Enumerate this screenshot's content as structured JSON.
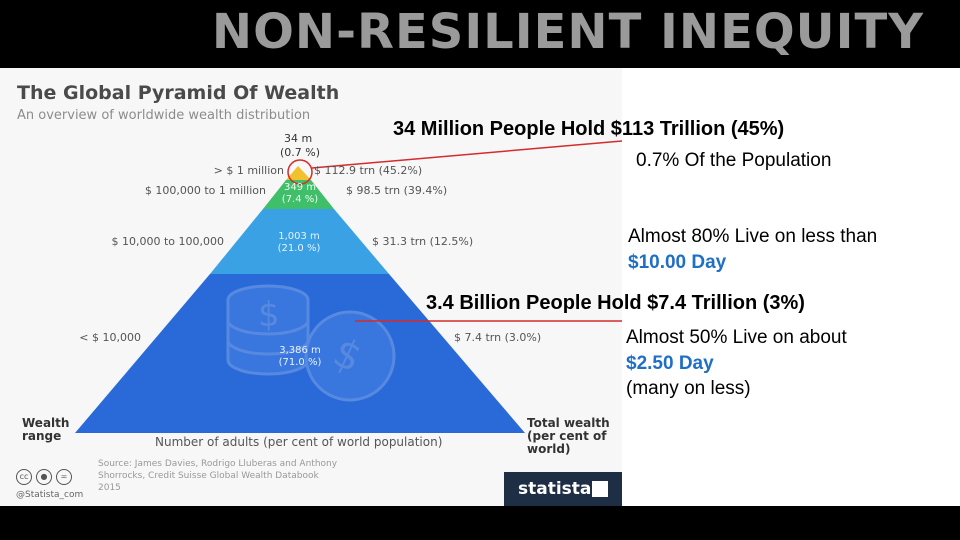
{
  "slide": {
    "title": "NON-RESILIENT INEQUITY"
  },
  "infographic": {
    "title": "The Global Pyramid Of Wealth",
    "subtitle": "An overview of worldwide wealth distribution",
    "source": "Source: James Davies, Rodrigo Lluberas and Anthony Shorrocks, Credit Suisse Global Wealth Databook 2015",
    "handle": "@Statista_com",
    "brand": "statista",
    "license_icons": [
      "cc",
      "person",
      "="
    ],
    "colors": {
      "top": "#f2c12e",
      "tier2": "#3fbf6a",
      "tier3": "#3aa1e4",
      "base": "#2a6ad8",
      "highlight": "#d52b2b"
    }
  },
  "chart_data": {
    "type": "pyramid",
    "title": "The Global Pyramid Of Wealth",
    "subtitle": "An overview of worldwide wealth distribution",
    "left_axis_label": "Wealth range",
    "bottom_axis_label": "Number of adults (per cent of world population)",
    "right_axis_label": "Total wealth (per cent of world)",
    "tiers": [
      {
        "range": "> $ 1 million",
        "adults": "34 m",
        "adults_pct": "(0.7 %)",
        "wealth": "$ 112.9 trn (45.2%)",
        "adults_m": 34,
        "wealth_trn": 112.9
      },
      {
        "range": "$ 100,000 to 1 million",
        "adults": "349 m",
        "adults_pct": "(7.4 %)",
        "wealth": "$ 98.5 trn (39.4%)",
        "adults_m": 349,
        "wealth_trn": 98.5
      },
      {
        "range": "$ 10,000 to 100,000",
        "adults": "1,003 m",
        "adults_pct": "(21.0 %)",
        "wealth": "$ 31.3 trn (12.5%)",
        "adults_m": 1003,
        "wealth_trn": 31.3
      },
      {
        "range": "< $ 10,000",
        "adults": "3,386 m",
        "adults_pct": "(71.0 %)",
        "wealth": "$ 7.4 trn (3.0%)",
        "adults_m": 3386,
        "wealth_trn": 7.4
      }
    ]
  },
  "annotations": {
    "top_headline": "34 Million People Hold $113 Trillion (45%)",
    "top_pct": "0.7%",
    "top_pct_rest": " Of the Population",
    "mid_line1": "Almost 80% Live on less than",
    "mid_line2": "$10.00 Day",
    "bottom_headline": "3.4 Billion People Hold $7.4 Trillion (3%)",
    "bottom_line1": "Almost 50% Live on about",
    "bottom_line2": "$2.50 Day",
    "bottom_line3": "(many on less)"
  }
}
